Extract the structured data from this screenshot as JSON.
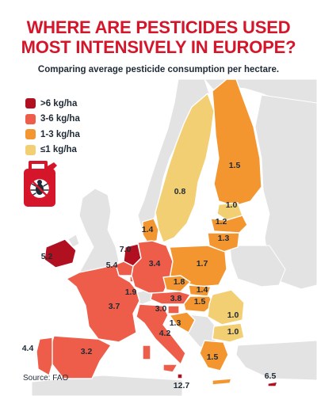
{
  "title": {
    "line1": "WHERE ARE PESTICIDES USED",
    "line2": "MOST INTENSIVELY IN EUROPE?"
  },
  "subtitle": "Comparing average pesticide consumption per hectare.",
  "legend": [
    {
      "label": ">6 kg/ha",
      "color": "#b0101f"
    },
    {
      "label": "3-6 kg/ha",
      "color": "#ee5d49"
    },
    {
      "label": "1-3 kg/ha",
      "color": "#f4962f"
    },
    {
      "label": "≤1 kg/ha",
      "color": "#f2cf72"
    }
  ],
  "icon": {
    "name": "pesticide-canister-icon",
    "color": "#d5152a"
  },
  "map_values": {
    "finland": "1.5",
    "sweden": "0.8",
    "estonia": "1.0",
    "latvia": "1.2",
    "lithuania": "1.3",
    "denmark": "1.4",
    "ireland": "5.2",
    "netherlands": "7.0",
    "belgium": "5.4",
    "germany": "3.4",
    "poland": "1.7",
    "czechia": "1.8",
    "slovakia": "1.4",
    "austria": "3.8",
    "hungary": "1.5",
    "luxembourg": "1.9",
    "france": "3.7",
    "slovenia": "3.0",
    "croatia": "1.3",
    "italy": "4.2",
    "romania": "1.0",
    "bulgaria": "1.0",
    "greece": "1.5",
    "portugal": "4.4",
    "spain": "3.2",
    "malta": "12.7",
    "cyprus": "6.5"
  },
  "source": "Source: FAO"
}
